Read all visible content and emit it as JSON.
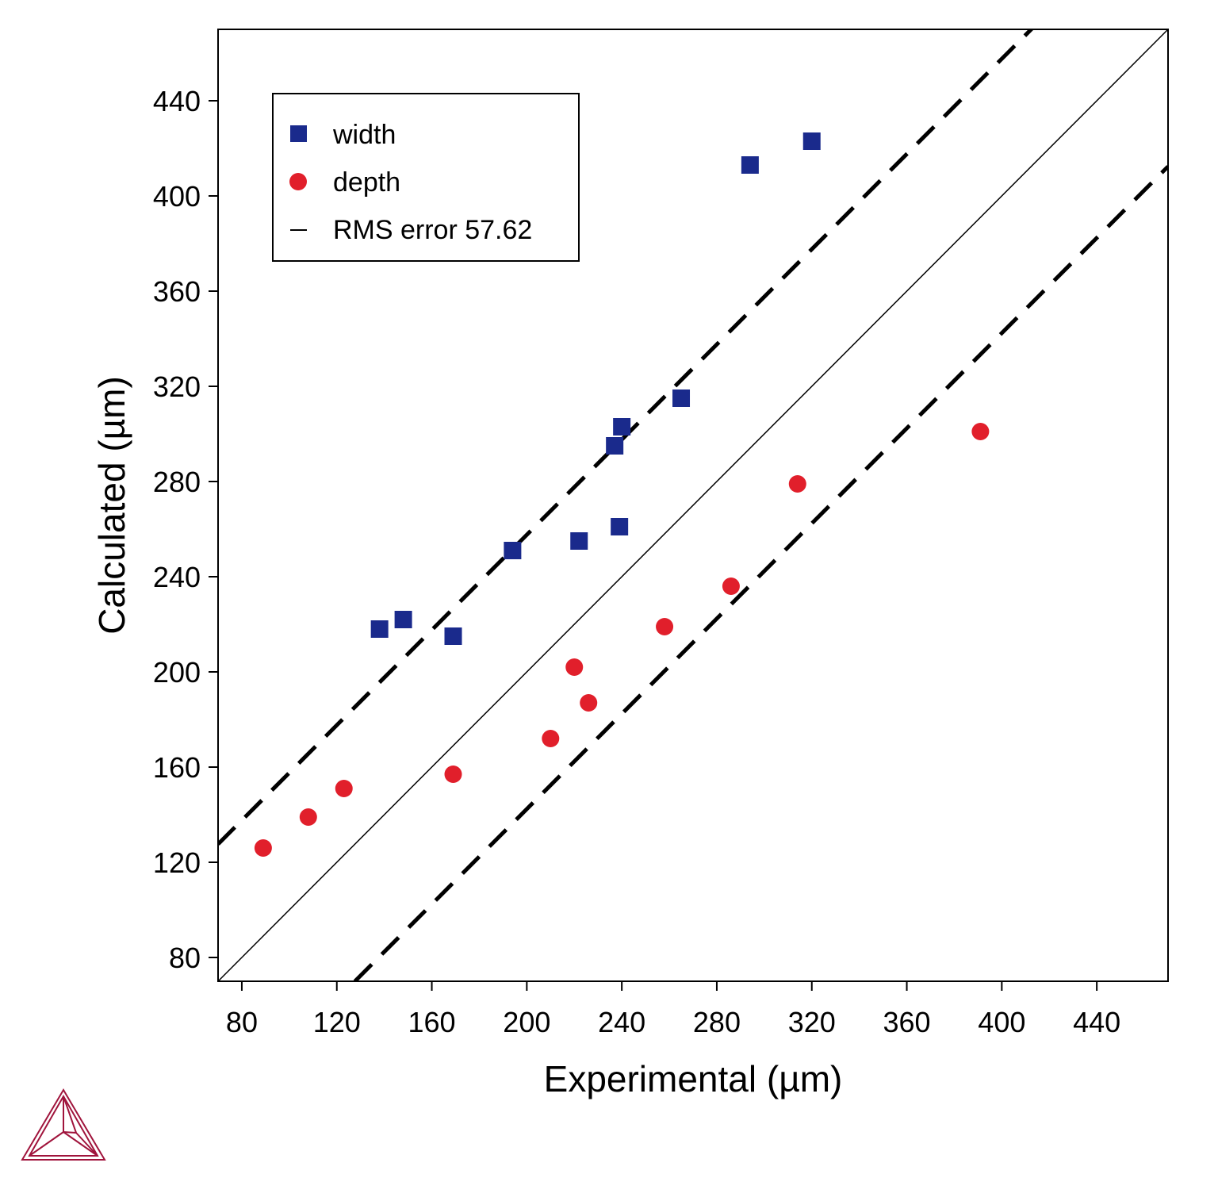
{
  "chart_data": {
    "type": "scatter",
    "title": "",
    "xlabel": "Experimental (µm)",
    "ylabel": "Calculated (µm)",
    "xlim": [
      70,
      470
    ],
    "ylim": [
      70,
      470
    ],
    "xticks": [
      "80",
      "120",
      "160",
      "200",
      "240",
      "280",
      "320",
      "360",
      "400",
      "440"
    ],
    "yticks": [
      "80",
      "120",
      "160",
      "200",
      "240",
      "280",
      "320",
      "360",
      "400",
      "440"
    ],
    "grid": false,
    "legend_position": "top-left",
    "series": [
      {
        "name": "width",
        "marker": "square",
        "color": "#1a2a8c",
        "points": [
          [
            138,
            218
          ],
          [
            148,
            222
          ],
          [
            169,
            215
          ],
          [
            194,
            251
          ],
          [
            222,
            255
          ],
          [
            239,
            261
          ],
          [
            237,
            295
          ],
          [
            240,
            303
          ],
          [
            265,
            315
          ],
          [
            294,
            413
          ],
          [
            320,
            423
          ]
        ]
      },
      {
        "name": "depth",
        "marker": "circle",
        "color": "#e11f2b",
        "points": [
          [
            89,
            126
          ],
          [
            108,
            139
          ],
          [
            123,
            151
          ],
          [
            169,
            157
          ],
          [
            210,
            172
          ],
          [
            220,
            202
          ],
          [
            226,
            187
          ],
          [
            258,
            219
          ],
          [
            286,
            236
          ],
          [
            314,
            279
          ],
          [
            391,
            301
          ]
        ]
      }
    ],
    "reference_lines": {
      "identity_label": "RMS error 57.62",
      "rms_error": 57.62
    }
  }
}
